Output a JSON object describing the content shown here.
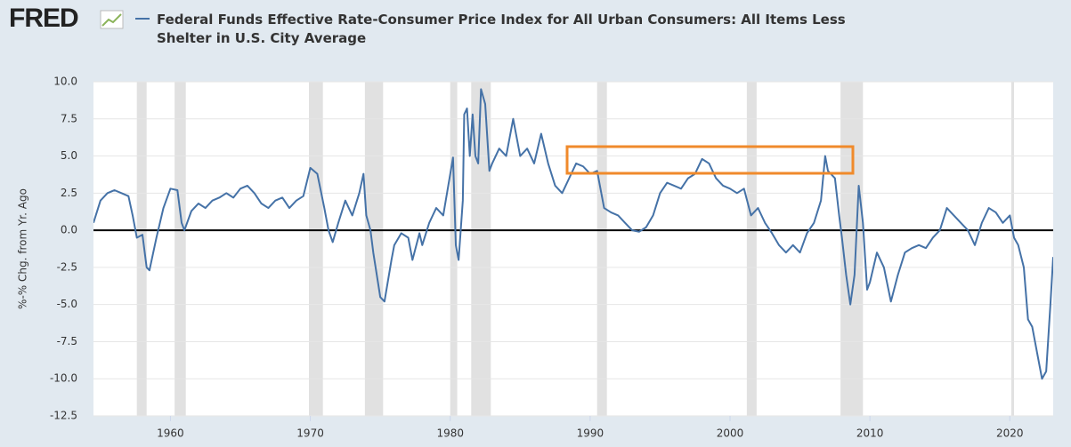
{
  "brand": "FRED",
  "chart_data": {
    "type": "line",
    "ylabel": "%-% Chg. from Yr. Ago",
    "x": [
      1954.5,
      1955,
      1955.5,
      1956,
      1956.5,
      1957,
      1957.3,
      1957.6,
      1958,
      1958.3,
      1958.5,
      1959,
      1959.5,
      1960,
      1960.5,
      1960.8,
      1961,
      1961.5,
      1962,
      1962.5,
      1963,
      1963.5,
      1964,
      1964.5,
      1965,
      1965.5,
      1966,
      1966.5,
      1967,
      1967.5,
      1968,
      1968.5,
      1969,
      1969.5,
      1970,
      1970.5,
      1971,
      1971.3,
      1971.6,
      1972,
      1972.5,
      1973,
      1973.5,
      1973.8,
      1974,
      1974.3,
      1974.5,
      1975,
      1975.3,
      1975.8,
      1976,
      1976.5,
      1977,
      1977.3,
      1977.8,
      1978,
      1978.5,
      1979,
      1979.5,
      1980.2,
      1980.4,
      1980.6,
      1980.9,
      1981,
      1981.2,
      1981.4,
      1981.6,
      1981.8,
      1982,
      1982.2,
      1982.5,
      1982.8,
      1983,
      1983.5,
      1984,
      1984.5,
      1985,
      1985.5,
      1986,
      1986.5,
      1987,
      1987.5,
      1988,
      1988.5,
      1989,
      1989.5,
      1990,
      1990.5,
      1991,
      1991.5,
      1992,
      1992.5,
      1993,
      1993.5,
      1994,
      1994.5,
      1995,
      1995.5,
      1996,
      1996.5,
      1997,
      1997.5,
      1998,
      1998.5,
      1999,
      1999.5,
      2000,
      2000.5,
      2001,
      2001.5,
      2002,
      2002.5,
      2003,
      2003.5,
      2004,
      2004.5,
      2005,
      2005.5,
      2006,
      2006.5,
      2006.8,
      2007,
      2007.5,
      2007.8,
      2008,
      2008.3,
      2008.6,
      2008.9,
      2009.2,
      2009.5,
      2009.8,
      2010,
      2010.5,
      2011,
      2011.5,
      2012,
      2012.5,
      2013,
      2013.5,
      2014,
      2014.5,
      2015,
      2015.5,
      2016,
      2016.5,
      2017,
      2017.5,
      2018,
      2018.5,
      2019,
      2019.5,
      2020,
      2020.3,
      2020.6,
      2021,
      2021.3,
      2021.6,
      2022,
      2022.3,
      2022.6,
      2022.9,
      2023.1
    ],
    "series": [
      {
        "name": "Federal Funds Effective Rate-Consumer Price Index for All Urban Consumers: All Items Less Shelter in U.S. City Average",
        "color": "#4572a7",
        "values": [
          0.5,
          2.0,
          2.5,
          2.7,
          2.5,
          2.3,
          1.0,
          -0.5,
          -0.3,
          -2.5,
          -2.7,
          -0.5,
          1.5,
          2.8,
          2.7,
          0.5,
          0.0,
          1.3,
          1.8,
          1.5,
          2.0,
          2.2,
          2.5,
          2.2,
          2.8,
          3.0,
          2.5,
          1.8,
          1.5,
          2.0,
          2.2,
          1.5,
          2.0,
          2.3,
          4.2,
          3.8,
          1.5,
          0.0,
          -0.8,
          0.5,
          2.0,
          1.0,
          2.5,
          3.8,
          1.0,
          0.0,
          -1.5,
          -4.5,
          -4.8,
          -2.0,
          -1.0,
          -0.2,
          -0.5,
          -2.0,
          -0.2,
          -1.0,
          0.5,
          1.5,
          1.0,
          4.9,
          -1.0,
          -2.0,
          2.0,
          7.8,
          8.2,
          5.0,
          7.8,
          5.0,
          4.5,
          9.5,
          8.5,
          4.0,
          4.5,
          5.5,
          5.0,
          7.5,
          5.0,
          5.5,
          4.5,
          6.5,
          4.5,
          3.0,
          2.5,
          3.5,
          4.5,
          4.3,
          3.8,
          4.0,
          1.5,
          1.2,
          1.0,
          0.5,
          0.0,
          -0.1,
          0.2,
          1.0,
          2.5,
          3.2,
          3.0,
          2.8,
          3.5,
          3.8,
          4.8,
          4.5,
          3.5,
          3.0,
          2.8,
          2.5,
          2.8,
          1.0,
          1.5,
          0.5,
          -0.2,
          -1.0,
          -1.5,
          -1.0,
          -1.5,
          -0.2,
          0.5,
          2.0,
          5.0,
          4.0,
          3.5,
          1.0,
          -0.5,
          -3.0,
          -5.0,
          -3.0,
          3.0,
          0.5,
          -4.0,
          -3.5,
          -1.5,
          -2.5,
          -4.8,
          -3.0,
          -1.5,
          -1.2,
          -1.0,
          -1.2,
          -0.5,
          0.0,
          1.5,
          1.0,
          0.5,
          0.0,
          -1.0,
          0.5,
          1.5,
          1.2,
          0.5,
          1.0,
          -0.5,
          -1.0,
          -2.5,
          -6.0,
          -6.5,
          -8.5,
          -10.0,
          -9.5,
          -5.0,
          -1.8
        ]
      }
    ],
    "recessions": [
      [
        1957.6,
        1958.3
      ],
      [
        1960.3,
        1961.1
      ],
      [
        1969.9,
        1970.9
      ],
      [
        1973.9,
        1975.2
      ],
      [
        1980.0,
        1980.5
      ],
      [
        1981.5,
        1982.9
      ],
      [
        1990.5,
        1991.2
      ],
      [
        2001.2,
        2001.9
      ],
      [
        2007.9,
        2009.5
      ],
      [
        2020.1,
        2020.3
      ]
    ],
    "xlim": [
      1954.5,
      2023.1
    ],
    "ylim": [
      -12.5,
      10
    ],
    "xticks": [
      1960,
      1970,
      1980,
      1990,
      2000,
      2010,
      2020
    ],
    "yticks": [
      {
        "value": 10,
        "label": "10.0"
      },
      7.5,
      {
        "value": 5,
        "label": "5.0"
      },
      2.5,
      {
        "value": 0,
        "label": "0.0"
      },
      -2.5,
      {
        "value": -5,
        "label": "-5.0"
      },
      -7.5,
      {
        "value": -10,
        "label": "-10.0"
      },
      -12.5
    ],
    "grid": true
  }
}
